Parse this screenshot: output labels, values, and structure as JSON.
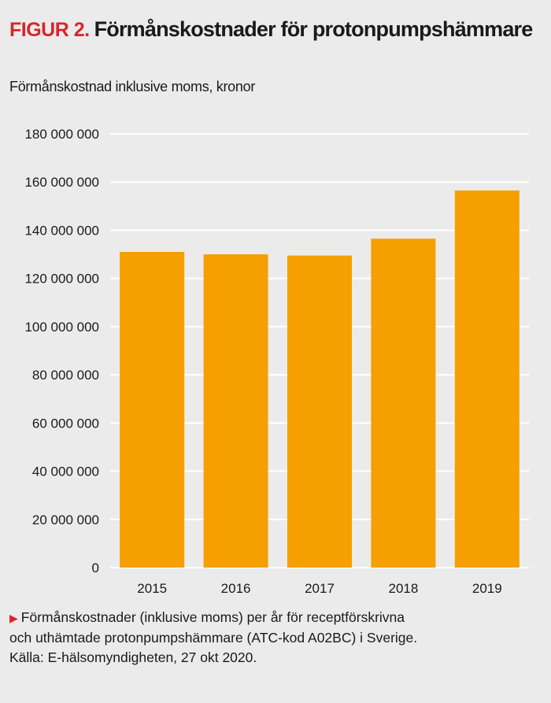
{
  "header": {
    "figure_label": "FIGUR 2.",
    "title": "Förmånskostnader för protonpumpshämmare"
  },
  "colors": {
    "bar": "#f5a000",
    "accent": "#d7262a",
    "grid": "#ffffff",
    "background": "#ebebeb"
  },
  "chart_data": {
    "type": "bar",
    "ylabel": "Förmånskostnad inklusive moms, kronor",
    "categories": [
      "2015",
      "2016",
      "2017",
      "2018",
      "2019"
    ],
    "values": [
      131000000,
      130000000,
      129500000,
      136500000,
      156500000
    ],
    "ylim": [
      0,
      180000000
    ],
    "yticks": [
      0,
      20000000,
      40000000,
      60000000,
      80000000,
      100000000,
      120000000,
      140000000,
      160000000,
      180000000
    ],
    "ytick_labels": [
      "0",
      "20 000 000",
      "40 000 000",
      "60 000 000",
      "80 000 000",
      "100 000 000",
      "120 000 000",
      "140 000 000",
      "160 000 000",
      "180 000 000"
    ],
    "grid": true,
    "legend": "none"
  },
  "caption": {
    "arrow_icon": "triangle-right-icon",
    "lines": [
      "Förmånskostnader (inklusive moms) per år för receptförskrivna",
      "och uthämtade protonpumpshämmare (ATC-kod A02BC) i Sverige.",
      "Källa: E-hälsomyndigheten, 27 okt 2020."
    ]
  }
}
